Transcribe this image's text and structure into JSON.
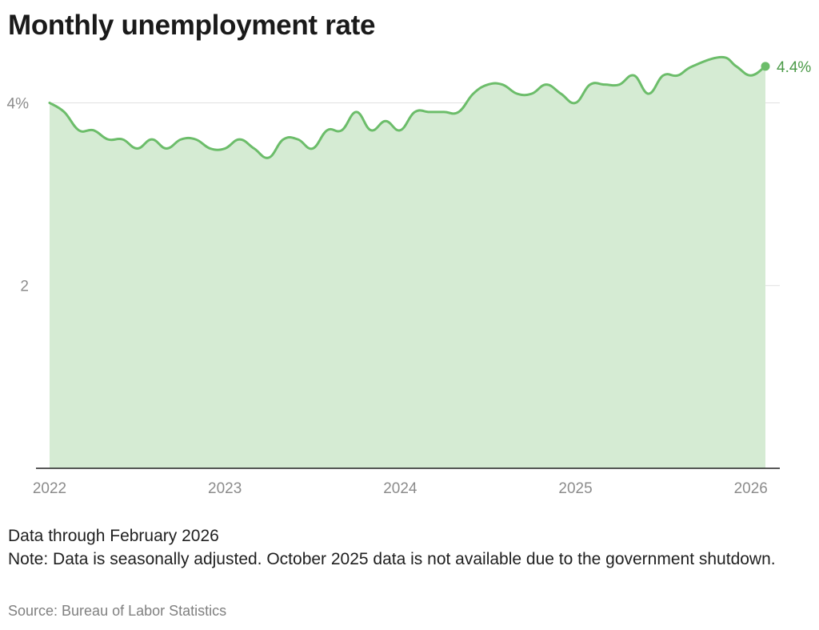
{
  "title": "Monthly unemployment rate",
  "notes": {
    "through": "Data through February 2026",
    "note": "Note: Data is seasonally adjusted. October 2025 data is not available due to the government shutdown.",
    "source": "Source: Bureau of Labor Statistics"
  },
  "colors": {
    "line": "#6cbd6a",
    "fill": "#d5ebd3",
    "label": "#4a9a47",
    "grid": "#e1e1e1",
    "axis": "#222222",
    "tick": "#8c8c8c"
  },
  "chart_data": {
    "type": "area",
    "title": "Monthly unemployment rate",
    "xlabel": "",
    "ylabel": "",
    "x_ticks": [
      "2022",
      "2023",
      "2024",
      "2025",
      "2026"
    ],
    "y_ticks": [
      {
        "value": 2,
        "label": "2"
      },
      {
        "value": 4,
        "label": "4%"
      }
    ],
    "ylim": [
      0,
      4.6
    ],
    "xlim": [
      "2022-01",
      "2026-02"
    ],
    "grid": true,
    "last_value_label": "4.4%",
    "series": [
      {
        "x": [
          "2022-01",
          "2022-02",
          "2022-03",
          "2022-04",
          "2022-05",
          "2022-06",
          "2022-07",
          "2022-08",
          "2022-09",
          "2022-10",
          "2022-11",
          "2022-12",
          "2023-01",
          "2023-02",
          "2023-03",
          "2023-04",
          "2023-05",
          "2023-06",
          "2023-07",
          "2023-08",
          "2023-09",
          "2023-10",
          "2023-11",
          "2023-12",
          "2024-01",
          "2024-02",
          "2024-03",
          "2024-04",
          "2024-05",
          "2024-06",
          "2024-07",
          "2024-08",
          "2024-09",
          "2024-10",
          "2024-11",
          "2024-12",
          "2025-01",
          "2025-02",
          "2025-03",
          "2025-04",
          "2025-05",
          "2025-06",
          "2025-07",
          "2025-08",
          "2025-09",
          "2025-11",
          "2025-12",
          "2026-01",
          "2026-02"
        ],
        "values": [
          4.0,
          3.9,
          3.7,
          3.7,
          3.6,
          3.6,
          3.5,
          3.6,
          3.5,
          3.6,
          3.6,
          3.5,
          3.5,
          3.6,
          3.5,
          3.4,
          3.6,
          3.6,
          3.5,
          3.7,
          3.7,
          3.9,
          3.7,
          3.8,
          3.7,
          3.9,
          3.9,
          3.9,
          3.9,
          4.1,
          4.2,
          4.2,
          4.1,
          4.1,
          4.2,
          4.1,
          4.0,
          4.2,
          4.2,
          4.2,
          4.3,
          4.1,
          4.3,
          4.3,
          4.4,
          4.5,
          4.4,
          4.3,
          4.4
        ]
      }
    ]
  }
}
